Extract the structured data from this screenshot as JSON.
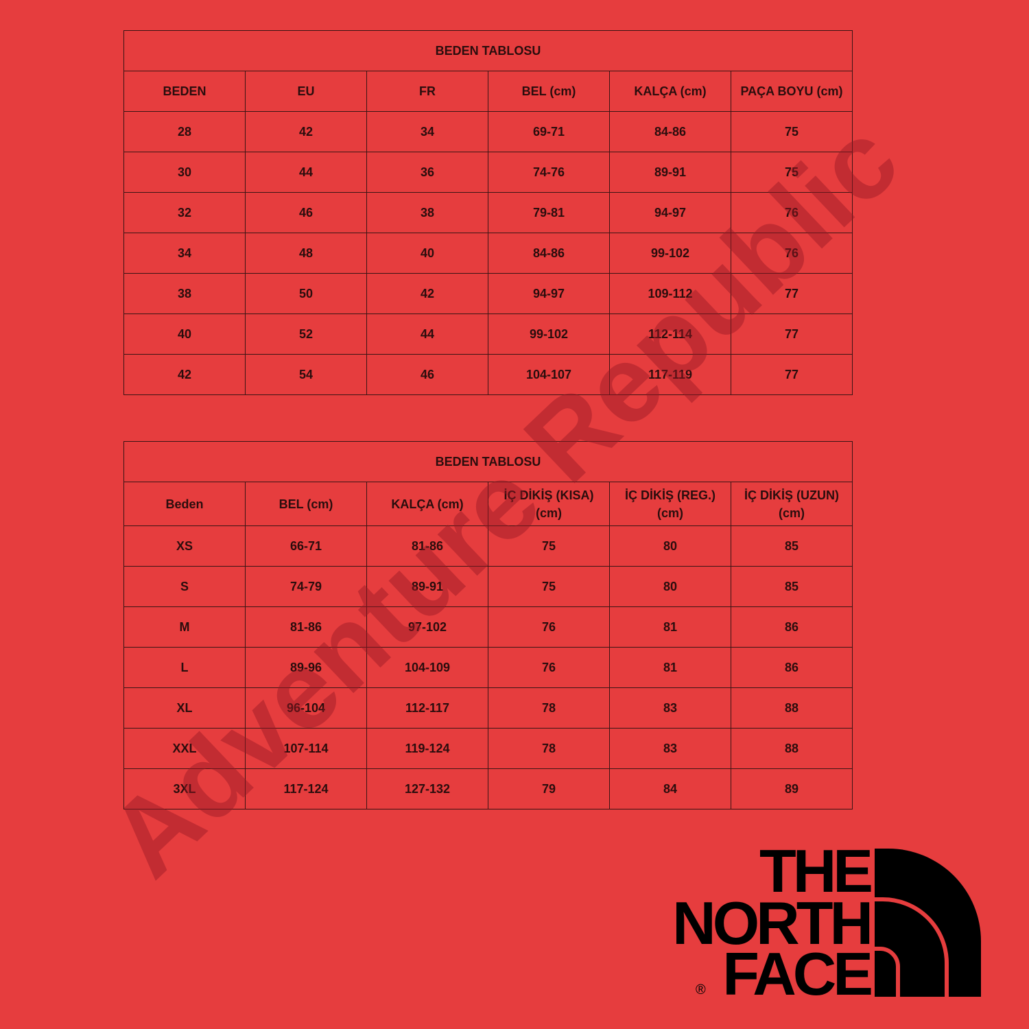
{
  "table1": {
    "title": "BEDEN TABLOSU",
    "headers": [
      "BEDEN",
      "EU",
      "FR",
      "BEL (cm)",
      "KALÇA (cm)",
      "PAÇA BOYU (cm)"
    ],
    "rows": [
      [
        "28",
        "42",
        "34",
        "69-71",
        "84-86",
        "75"
      ],
      [
        "30",
        "44",
        "36",
        "74-76",
        "89-91",
        "75"
      ],
      [
        "32",
        "46",
        "38",
        "79-81",
        "94-97",
        "76"
      ],
      [
        "34",
        "48",
        "40",
        "84-86",
        "99-102",
        "76"
      ],
      [
        "38",
        "50",
        "42",
        "94-97",
        "109-112",
        "77"
      ],
      [
        "40",
        "52",
        "44",
        "99-102",
        "112-114",
        "77"
      ],
      [
        "42",
        "54",
        "46",
        "104-107",
        "117-119",
        "77"
      ]
    ]
  },
  "table2": {
    "title": "BEDEN TABLOSU",
    "headers": [
      [
        "Beden",
        ""
      ],
      [
        "BEL (cm)",
        ""
      ],
      [
        "KALÇA (cm)",
        ""
      ],
      [
        "İÇ DİKİŞ (KISA)",
        "(cm)"
      ],
      [
        "İÇ DİKİŞ (REG.)",
        "(cm)"
      ],
      [
        "İÇ DİKİŞ (UZUN)",
        "(cm)"
      ]
    ],
    "rows": [
      [
        "XS",
        "66-71",
        "81-86",
        "75",
        "80",
        "85"
      ],
      [
        "S",
        "74-79",
        "89-91",
        "75",
        "80",
        "85"
      ],
      [
        "M",
        "81-86",
        "97-102",
        "76",
        "81",
        "86"
      ],
      [
        "L",
        "89-96",
        "104-109",
        "76",
        "81",
        "86"
      ],
      [
        "XL",
        "96-104",
        "112-117",
        "78",
        "83",
        "88"
      ],
      [
        "XXL",
        "107-114",
        "119-124",
        "78",
        "83",
        "88"
      ],
      [
        "3XL",
        "117-124",
        "127-132",
        "79",
        "84",
        "89"
      ]
    ]
  },
  "watermark": "Adventure Republic",
  "logo": {
    "line1": "THE",
    "line2": "NORTH",
    "line3": "FACE",
    "registered": "®"
  },
  "colors": {
    "background": "#e63d3e",
    "text": "#2a0d0d",
    "logo": "#000000"
  }
}
